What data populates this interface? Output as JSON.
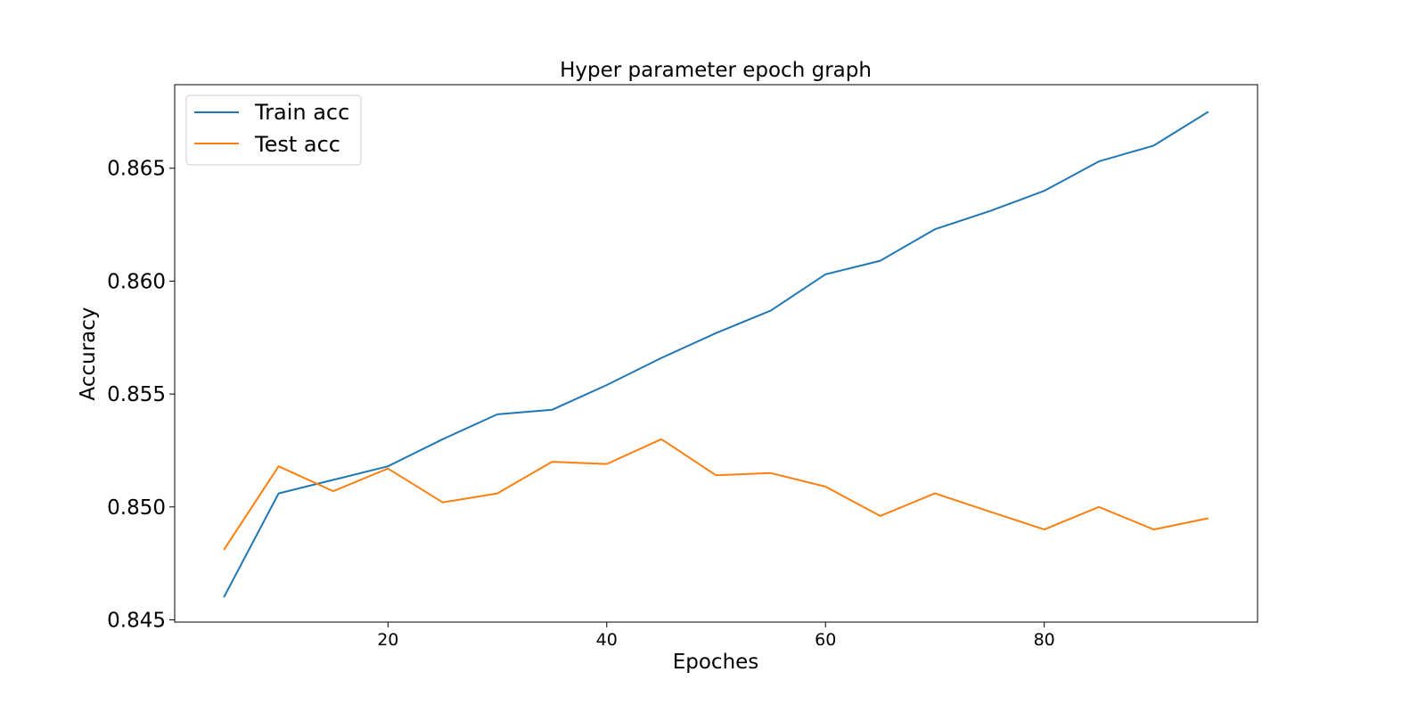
{
  "chart_data": {
    "type": "line",
    "title": "Hyper parameter epoch graph",
    "xlabel": "Epoches",
    "ylabel": "Accuracy",
    "x": [
      5,
      10,
      15,
      20,
      25,
      30,
      35,
      40,
      45,
      50,
      55,
      60,
      65,
      70,
      75,
      80,
      85,
      90,
      95
    ],
    "xlim": [
      0.5,
      99.5
    ],
    "ylim": [
      0.8449,
      0.8687
    ],
    "xticks": [
      20,
      40,
      60,
      80
    ],
    "yticks": [
      0.845,
      0.85,
      0.855,
      0.86,
      0.865
    ],
    "xtick_labels": [
      "20",
      "40",
      "60",
      "80"
    ],
    "ytick_labels": [
      "0.845",
      "0.850",
      "0.855",
      "0.860",
      "0.865"
    ],
    "grid": false,
    "legend_position": "top-left",
    "series": [
      {
        "name": "Train acc",
        "color": "#1f77b4",
        "values": [
          0.846,
          0.8506,
          0.8512,
          0.8518,
          0.853,
          0.8541,
          0.8543,
          0.8554,
          0.8566,
          0.8577,
          0.8587,
          0.8603,
          0.8609,
          0.8623,
          0.8631,
          0.864,
          0.8653,
          0.866,
          0.8675
        ]
      },
      {
        "name": "Test acc",
        "color": "#ff7f0e",
        "values": [
          0.8481,
          0.8518,
          0.8507,
          0.8517,
          0.8502,
          0.8506,
          0.852,
          0.8519,
          0.853,
          0.8514,
          0.8515,
          0.8509,
          0.8496,
          0.8506,
          0.8498,
          0.849,
          0.85,
          0.849,
          0.8495
        ]
      }
    ]
  }
}
